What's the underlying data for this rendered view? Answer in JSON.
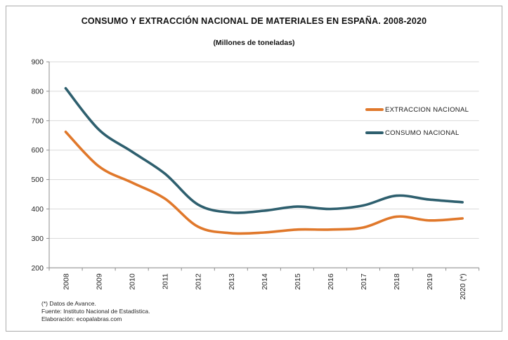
{
  "title": "CONSUMO Y EXTRACCIÓN NACIONAL DE MATERIALES EN ESPAÑA. 2008-2020",
  "subtitle": "(Millones de toneladas)",
  "legend": [
    {
      "label": "EXTRACCION NACIONAL",
      "color": "#E0782B"
    },
    {
      "label": "CONSUMO NACIONAL",
      "color": "#2E5F6E"
    }
  ],
  "footnotes": [
    "(*) Datos de Avance.",
    "Fuente: Instituto Nacional de Estadística.",
    "Elaboración: ecopalabras.com"
  ],
  "chart_data": {
    "type": "line",
    "smooth": true,
    "grid": true,
    "legend_position": "inside-right",
    "title": "CONSUMO Y EXTRACCIÓN NACIONAL DE MATERIALES EN ESPAÑA. 2008-2020",
    "subtitle": "(Millones de toneladas)",
    "xlabel": "",
    "ylabel": "",
    "ylim": [
      200,
      900
    ],
    "ytick_step": 100,
    "yticks": [
      200,
      300,
      400,
      500,
      600,
      700,
      800,
      900
    ],
    "categories": [
      "2008",
      "2009",
      "2010",
      "2011",
      "2012",
      "2013",
      "2014",
      "2015",
      "2016",
      "2017",
      "2018",
      "2019",
      "2020 (*)"
    ],
    "series": [
      {
        "name": "EXTRACCION NACIONAL",
        "color": "#E0782B",
        "values": [
          662,
          545,
          490,
          435,
          340,
          318,
          320,
          330,
          330,
          337,
          374,
          361,
          368
        ]
      },
      {
        "name": "CONSUMO NACIONAL",
        "color": "#2E5F6E",
        "values": [
          810,
          670,
          595,
          520,
          415,
          388,
          394,
          408,
          400,
          412,
          445,
          432,
          423
        ]
      }
    ]
  }
}
